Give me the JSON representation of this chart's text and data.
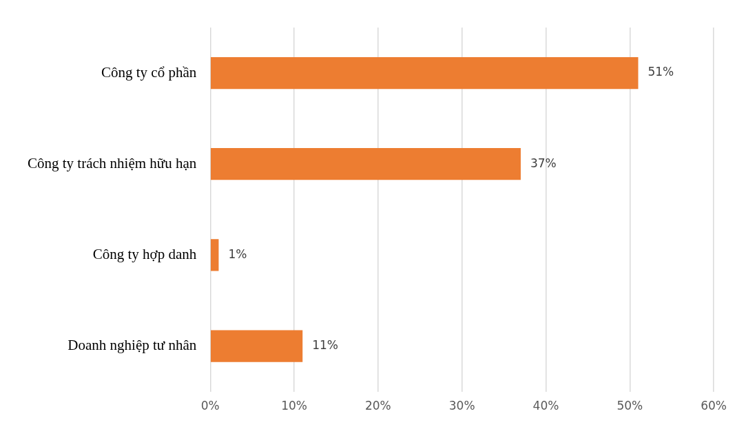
{
  "chart_data": {
    "type": "bar",
    "orientation": "horizontal",
    "categories": [
      "Công ty cổ phần",
      "Công ty trách nhiệm hữu hạn",
      "Công ty hợp danh",
      "Doanh nghiệp tư nhân"
    ],
    "values": [
      51,
      37,
      1,
      11
    ],
    "value_labels": [
      "51%",
      "37%",
      "1%",
      "11%"
    ],
    "color": "#ed7d31",
    "xlim": [
      0,
      60
    ],
    "xticks": [
      {
        "value": 0,
        "label": "0%"
      },
      {
        "value": 10,
        "label": "10%"
      },
      {
        "value": 20,
        "label": "20%"
      },
      {
        "value": 30,
        "label": "30%"
      },
      {
        "value": 40,
        "label": "40%"
      },
      {
        "value": 50,
        "label": "50%"
      },
      {
        "value": 60,
        "label": "60%"
      }
    ],
    "grid": "x",
    "legend": false
  }
}
